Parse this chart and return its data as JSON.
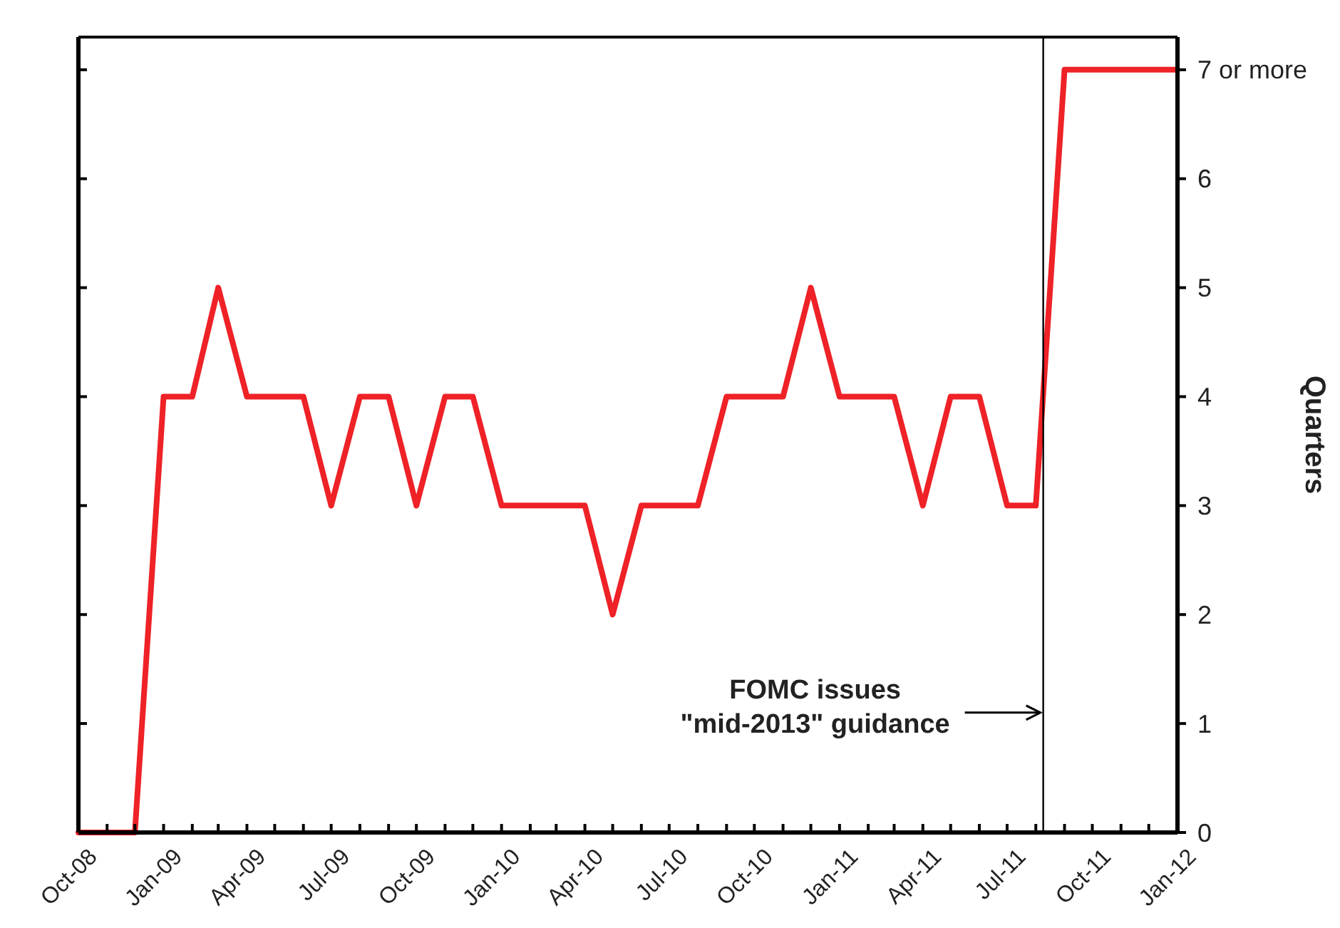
{
  "chart_data": {
    "type": "line",
    "ylabel": "Quarters",
    "x": [
      "2008-10",
      "2008-11",
      "2008-12",
      "2009-01",
      "2009-02",
      "2009-03",
      "2009-04",
      "2009-05",
      "2009-06",
      "2009-07",
      "2009-08",
      "2009-09",
      "2009-10",
      "2009-11",
      "2009-12",
      "2010-01",
      "2010-02",
      "2010-03",
      "2010-04",
      "2010-05",
      "2010-06",
      "2010-07",
      "2010-08",
      "2010-09",
      "2010-10",
      "2010-11",
      "2010-12",
      "2011-01",
      "2011-02",
      "2011-03",
      "2011-04",
      "2011-05",
      "2011-06",
      "2011-07",
      "2011-08",
      "2011-09",
      "2011-10",
      "2011-11",
      "2011-12",
      "2012-01"
    ],
    "series": [
      {
        "color": "#ee2227",
        "values": [
          0,
          0,
          0,
          4,
          4,
          5,
          4,
          4,
          4,
          3,
          4,
          4,
          3,
          4,
          4,
          3,
          3,
          3,
          3,
          2,
          3,
          3,
          3,
          4,
          4,
          4,
          5,
          4,
          4,
          4,
          3,
          4,
          4,
          3,
          3,
          7,
          7,
          7,
          7,
          7
        ]
      }
    ],
    "xlim": [
      "2008-10",
      "2012-01"
    ],
    "xticks": [
      {
        "value": "2008-10",
        "label": "Oct-08"
      },
      {
        "value": "2008-11",
        "label": null
      },
      {
        "value": "2008-12",
        "label": null
      },
      {
        "value": "2009-01",
        "label": "Jan-09"
      },
      {
        "value": "2009-02",
        "label": null
      },
      {
        "value": "2009-03",
        "label": null
      },
      {
        "value": "2009-04",
        "label": "Apr-09"
      },
      {
        "value": "2009-05",
        "label": null
      },
      {
        "value": "2009-06",
        "label": null
      },
      {
        "value": "2009-07",
        "label": "Jul-09"
      },
      {
        "value": "2009-08",
        "label": null
      },
      {
        "value": "2009-09",
        "label": null
      },
      {
        "value": "2009-10",
        "label": "Oct-09"
      },
      {
        "value": "2009-11",
        "label": null
      },
      {
        "value": "2009-12",
        "label": null
      },
      {
        "value": "2010-01",
        "label": "Jan-10"
      },
      {
        "value": "2010-02",
        "label": null
      },
      {
        "value": "2010-03",
        "label": null
      },
      {
        "value": "2010-04",
        "label": "Apr-10"
      },
      {
        "value": "2010-05",
        "label": null
      },
      {
        "value": "2010-06",
        "label": null
      },
      {
        "value": "2010-07",
        "label": "Jul-10"
      },
      {
        "value": "2010-08",
        "label": null
      },
      {
        "value": "2010-09",
        "label": null
      },
      {
        "value": "2010-10",
        "label": "Oct-10"
      },
      {
        "value": "2010-11",
        "label": null
      },
      {
        "value": "2010-12",
        "label": null
      },
      {
        "value": "2011-01",
        "label": "Jan-11"
      },
      {
        "value": "2011-02",
        "label": null
      },
      {
        "value": "2011-03",
        "label": null
      },
      {
        "value": "2011-04",
        "label": "Apr-11"
      },
      {
        "value": "2011-05",
        "label": null
      },
      {
        "value": "2011-06",
        "label": null
      },
      {
        "value": "2011-07",
        "label": "Jul-11"
      },
      {
        "value": "2011-08",
        "label": null
      },
      {
        "value": "2011-09",
        "label": null
      },
      {
        "value": "2011-10",
        "label": "Oct-11"
      },
      {
        "value": "2011-11",
        "label": null
      },
      {
        "value": "2011-12",
        "label": null
      },
      {
        "value": "2012-01",
        "label": "Jan-12"
      }
    ],
    "ylim": [
      0,
      7.3
    ],
    "yticks": [
      0,
      1,
      2,
      3,
      4,
      5,
      6,
      {
        "value": 7,
        "label": "7 or more"
      }
    ],
    "grid": false,
    "marker": "none",
    "line_style": "solid",
    "ref_lines": [
      {
        "axis": "x",
        "value": "2011-08-09",
        "color": "#000000"
      }
    ],
    "annotations": [
      {
        "text": "FOMC issues\n\"mid-2013\" guidance",
        "x": "2011-08-09",
        "y": 1.1
      }
    ]
  }
}
